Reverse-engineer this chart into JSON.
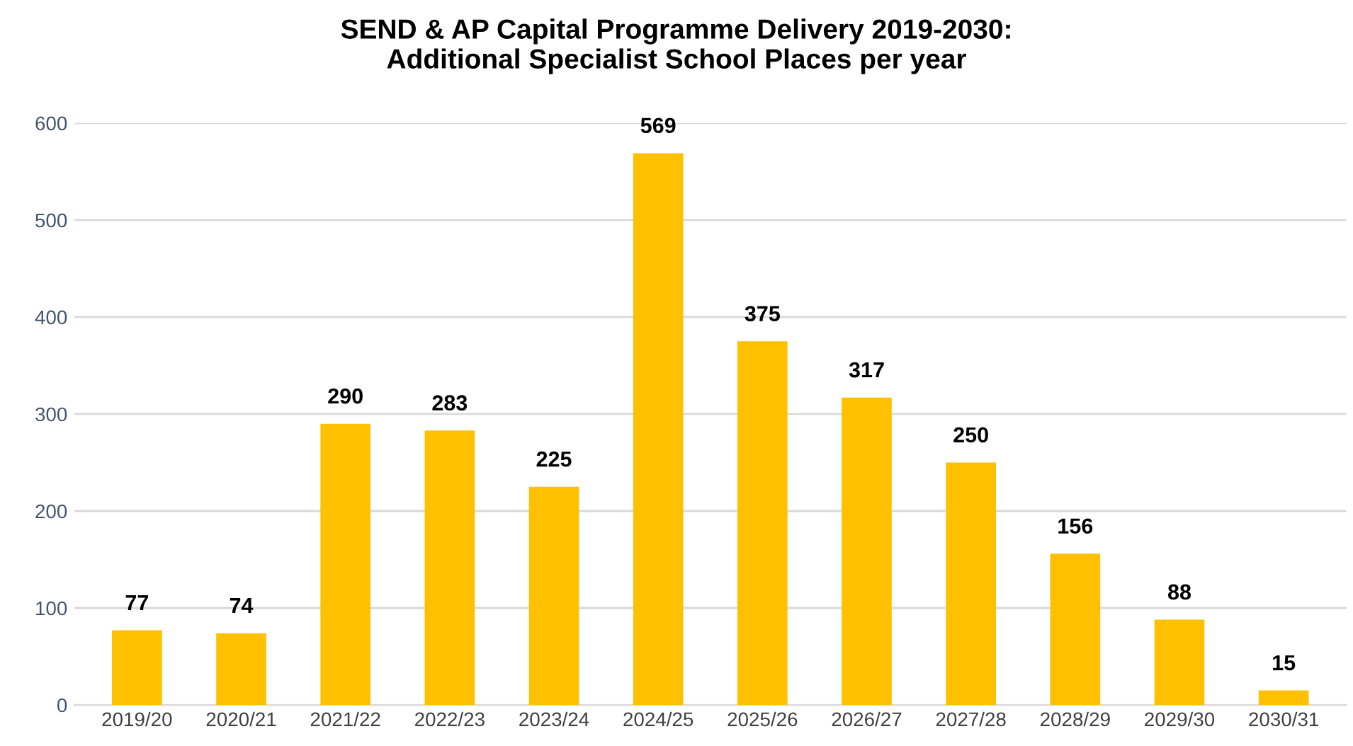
{
  "chart_data": {
    "type": "bar",
    "title": "SEND & AP Capital Programme Delivery 2019-2030:\nAdditional Specialist School Places per year",
    "categories": [
      "2019/20",
      "2020/21",
      "2021/22",
      "2022/23",
      "2023/24",
      "2024/25",
      "2025/26",
      "2026/27",
      "2027/28",
      "2028/29",
      "2029/30",
      "2030/31"
    ],
    "values": [
      77,
      74,
      290,
      283,
      225,
      569,
      375,
      317,
      250,
      156,
      88,
      15
    ],
    "color": "#ffc000",
    "ylim": [
      0,
      600
    ],
    "yticks": [
      0,
      100,
      200,
      300,
      400,
      500,
      600
    ],
    "grid": "y",
    "data_labels": true
  }
}
